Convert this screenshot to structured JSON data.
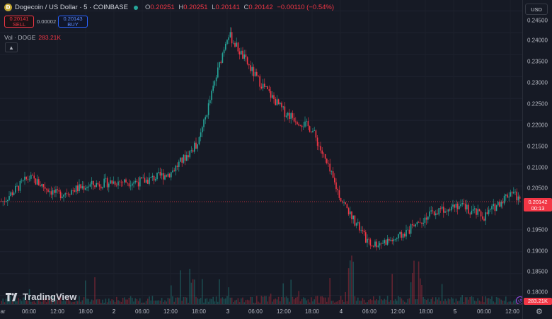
{
  "header": {
    "symbol_title": "Dogecoin / US Dollar · 5 · COINBASE",
    "ohlc": [
      {
        "k": "O",
        "v": "0.20251"
      },
      {
        "k": "H",
        "v": "0.20251"
      },
      {
        "k": "L",
        "v": "0.20141"
      },
      {
        "k": "C",
        "v": "0.20142"
      }
    ],
    "change": "−0.00110 (−0.54%)"
  },
  "trade": {
    "sell_price": "0.20141",
    "sell_label": "SELL",
    "spread": "0.00002",
    "buy_price": "0.20143",
    "buy_label": "BUY"
  },
  "volume": {
    "label": "Vol · DOGE",
    "value": "283.21K"
  },
  "axis": {
    "currency": "USD",
    "y_ticks": [
      "0.24500",
      "0.24000",
      "0.23500",
      "0.23000",
      "0.22500",
      "0.22000",
      "0.21500",
      "0.21000",
      "0.20500",
      "0.19500",
      "0.19000",
      "0.18500",
      "0.18000"
    ],
    "current_price": "0.20142",
    "countdown": "00:13",
    "volume_badge": "283.21K",
    "x_ticks": [
      "ar",
      "06:00",
      "12:00",
      "18:00",
      "2",
      "06:00",
      "12:00",
      "18:00",
      "3",
      "06:00",
      "12:00",
      "18:00",
      "4",
      "06:00",
      "12:00",
      "18:00",
      "5",
      "06:00",
      "12:00"
    ]
  },
  "branding": {
    "name": "TradingView"
  },
  "colors": {
    "up": "#26a69a",
    "down": "#f23645",
    "background": "#161a25",
    "price_line": "#f23645"
  },
  "chart_data": {
    "type": "candlestick",
    "interval": "5",
    "ylim": [
      0.178,
      0.2475
    ],
    "x": [
      "1 ar",
      "1 06:00",
      "1 12:00",
      "1 18:00",
      "2",
      "2 06:00",
      "2 12:00",
      "2 18:00",
      "3",
      "3 06:00",
      "3 12:00",
      "3 18:00",
      "4",
      "4 06:00",
      "4 12:00",
      "4 18:00",
      "5",
      "5 06:00",
      "5 12:00",
      "5 14:00"
    ],
    "close": [
      0.2015,
      0.207,
      0.203,
      0.205,
      0.206,
      0.206,
      0.208,
      0.215,
      0.24,
      0.23,
      0.222,
      0.218,
      0.202,
      0.1915,
      0.193,
      0.198,
      0.201,
      0.198,
      0.204,
      0.2014
    ],
    "volume_peak": "283.21K"
  }
}
